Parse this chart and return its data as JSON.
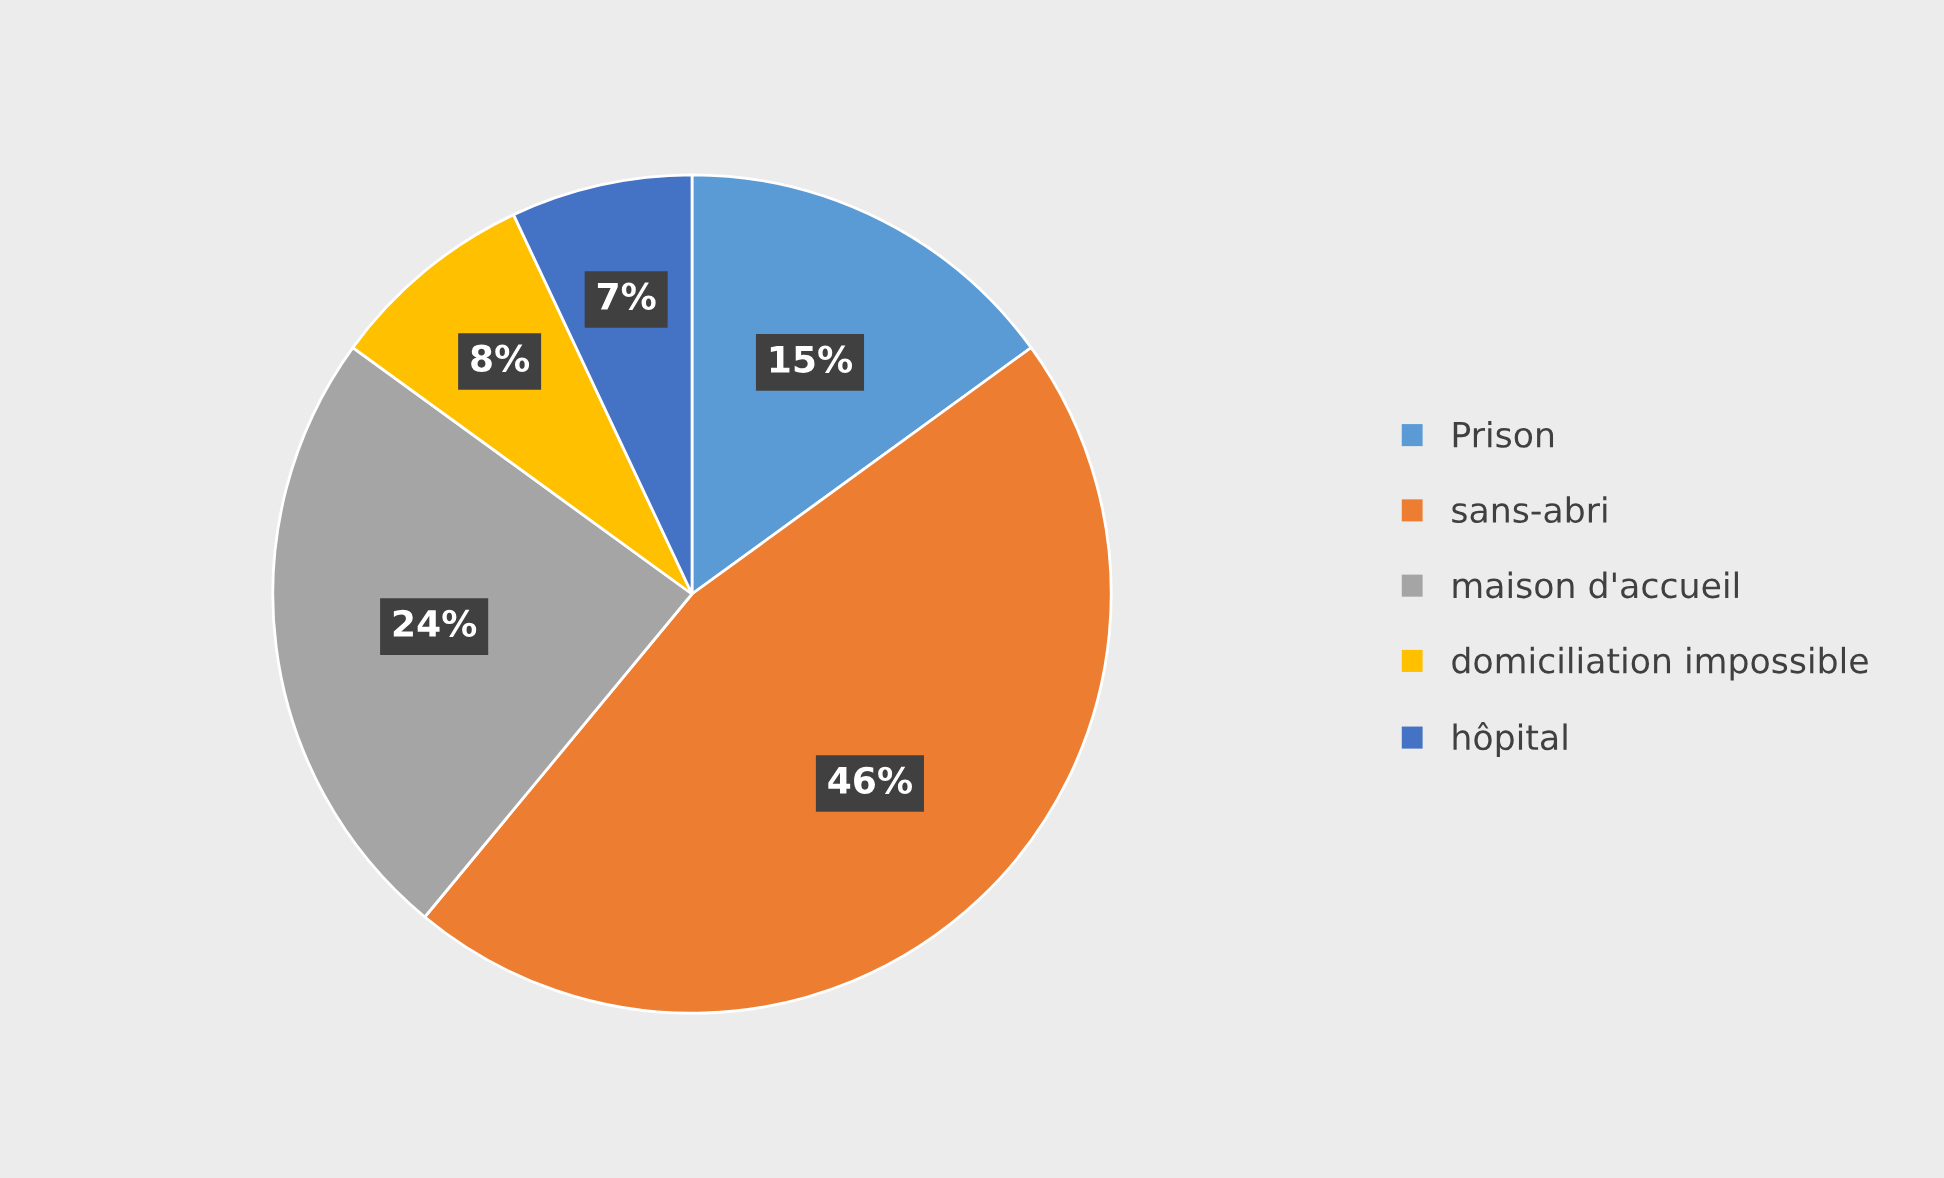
{
  "chart_data": {
    "type": "pie",
    "categories": [
      "Prison",
      "sans-abri",
      "maison d'accueil",
      "domiciliation impossible",
      "hôpital"
    ],
    "values": [
      15,
      46,
      24,
      8,
      7
    ],
    "colors": [
      "#5b9bd5",
      "#ed7d31",
      "#a5a5a5",
      "#ffc000",
      "#4472c4"
    ],
    "value_labels": [
      "15%",
      "46%",
      "24%",
      "8%",
      "7%"
    ],
    "legend": "right"
  }
}
